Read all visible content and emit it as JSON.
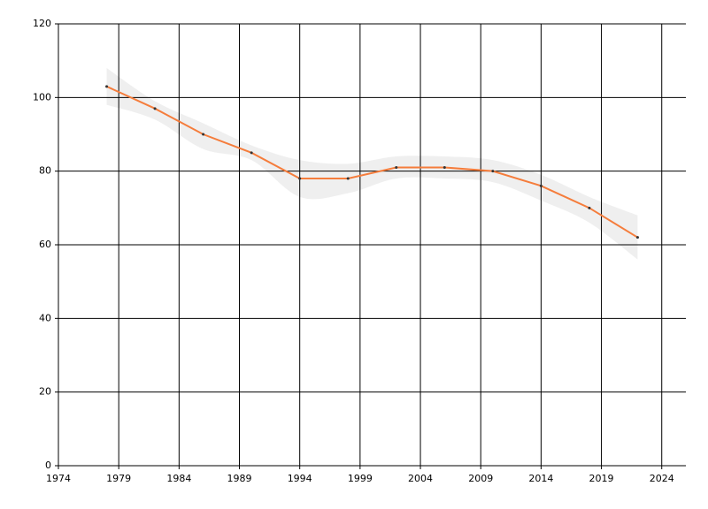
{
  "chart_data": {
    "type": "line",
    "x": [
      1978,
      1982,
      1986,
      1990,
      1994,
      1998,
      2002,
      2006,
      2010,
      2014,
      2018,
      2022
    ],
    "series": [
      {
        "color": "#f57d3c",
        "values": [
          103,
          97,
          90,
          85,
          78,
          78,
          81,
          81,
          80,
          76,
          70,
          62
        ]
      }
    ],
    "band": {
      "color": "#efefef",
      "upper": [
        108,
        99,
        93,
        87,
        83,
        82,
        84,
        84,
        83,
        79,
        73,
        68
      ],
      "lower": [
        98,
        94,
        86,
        83,
        73,
        74,
        78,
        78,
        77,
        72,
        66,
        56
      ]
    },
    "xlim": [
      1974,
      2026
    ],
    "xticks": [
      1974,
      1979,
      1984,
      1989,
      1994,
      1999,
      2004,
      2009,
      2014,
      2019,
      2024
    ],
    "ylim": [
      0,
      120
    ],
    "yticks": [
      0,
      20,
      40,
      60,
      80,
      100,
      120
    ],
    "grid": true
  }
}
